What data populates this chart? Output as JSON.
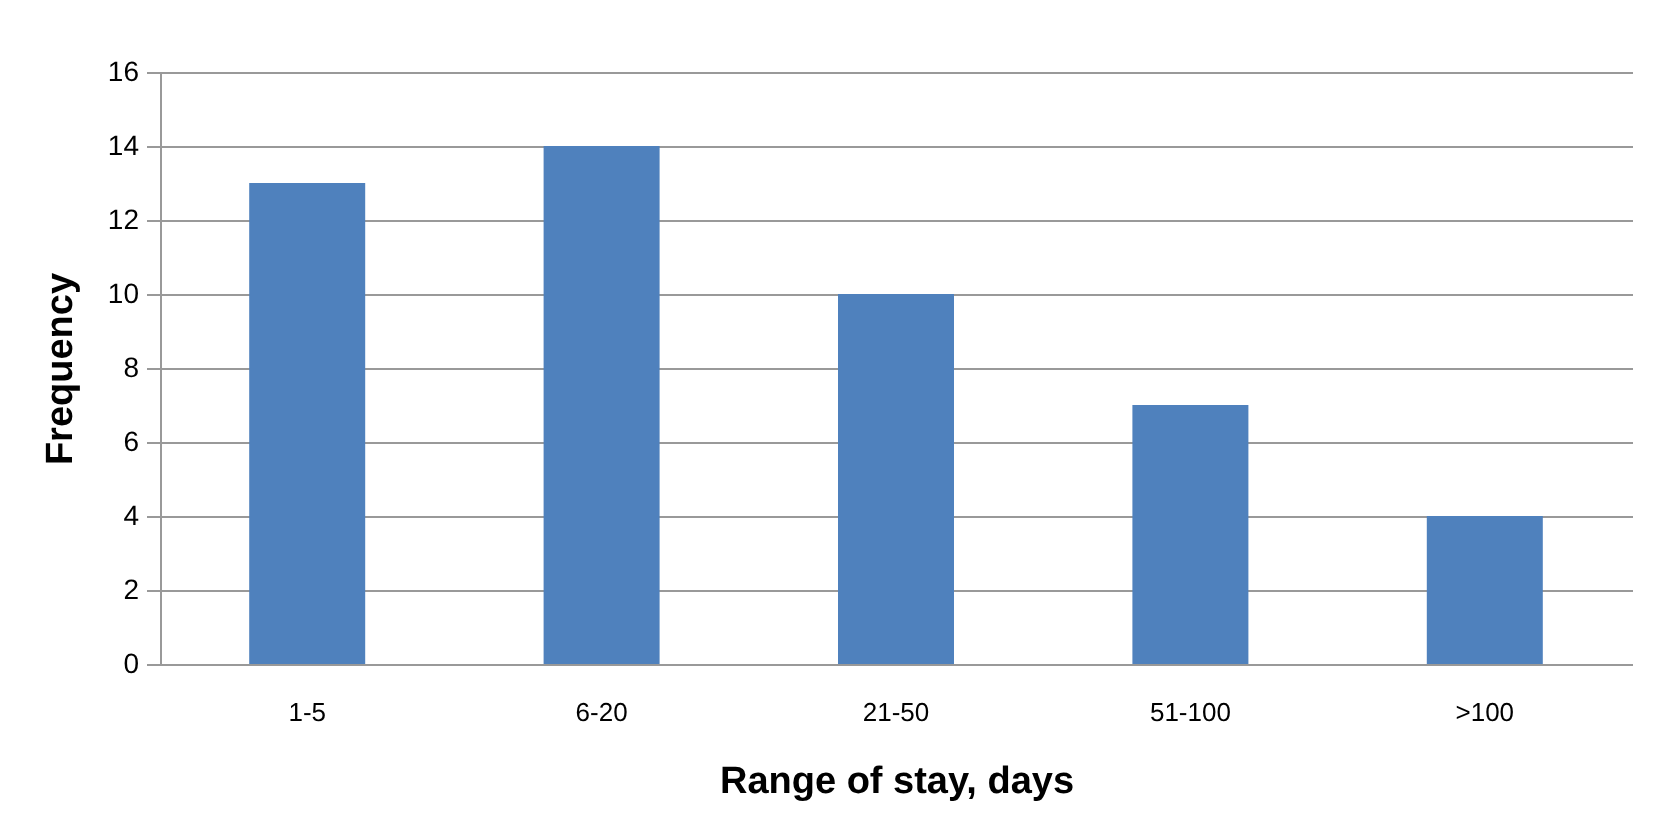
{
  "chart_data": {
    "type": "bar",
    "xlabel": "Range of stay, days",
    "ylabel": "Frequency",
    "categories": [
      "1-5",
      "6-20",
      "21-50",
      "51-100",
      ">100"
    ],
    "values": [
      13,
      14,
      10,
      7,
      4
    ],
    "color": "#4f81bd",
    "ylim": [
      0,
      16
    ],
    "yticks": [
      0,
      2,
      4,
      6,
      8,
      10,
      12,
      14,
      16
    ],
    "grid": "y"
  }
}
